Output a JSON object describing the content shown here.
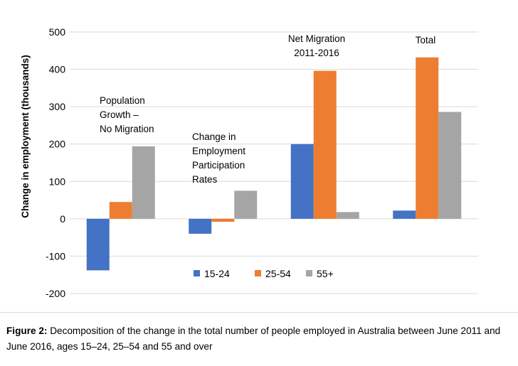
{
  "chart_data": {
    "type": "bar",
    "categories": [
      "Population Growth – No Migration",
      "Change in Employment Participation Rates",
      "Net Migration 2011-2016",
      "Total"
    ],
    "category_label_lines": [
      [
        "Population",
        "Growth –",
        "No Migration"
      ],
      [
        "Change in",
        "Employment",
        "Participation",
        "Rates"
      ],
      [
        "Net Migration",
        "2011-2016"
      ],
      [
        "Total"
      ]
    ],
    "series": [
      {
        "name": "15-24",
        "color": "#4472C4",
        "values": [
          -138,
          -40,
          200,
          22
        ]
      },
      {
        "name": "25-54",
        "color": "#ED7D31",
        "values": [
          45,
          -8,
          396,
          432
        ]
      },
      {
        "name": "55+",
        "color": "#A5A5A5",
        "values": [
          194,
          75,
          18,
          286
        ]
      }
    ],
    "ylabel": "Change in employment (thousands)",
    "ylim": [
      -200,
      500
    ],
    "yticks": [
      500,
      400,
      300,
      200,
      100,
      0,
      -100,
      -200
    ],
    "grid": true,
    "legend_position": "bottom-center"
  },
  "caption": {
    "label": "Figure 2:",
    "text": "Decomposition of the change in the total number of people employed in Australia between June 2011 and June 2016, ages 15–24, 25–54 and 55 and over"
  }
}
